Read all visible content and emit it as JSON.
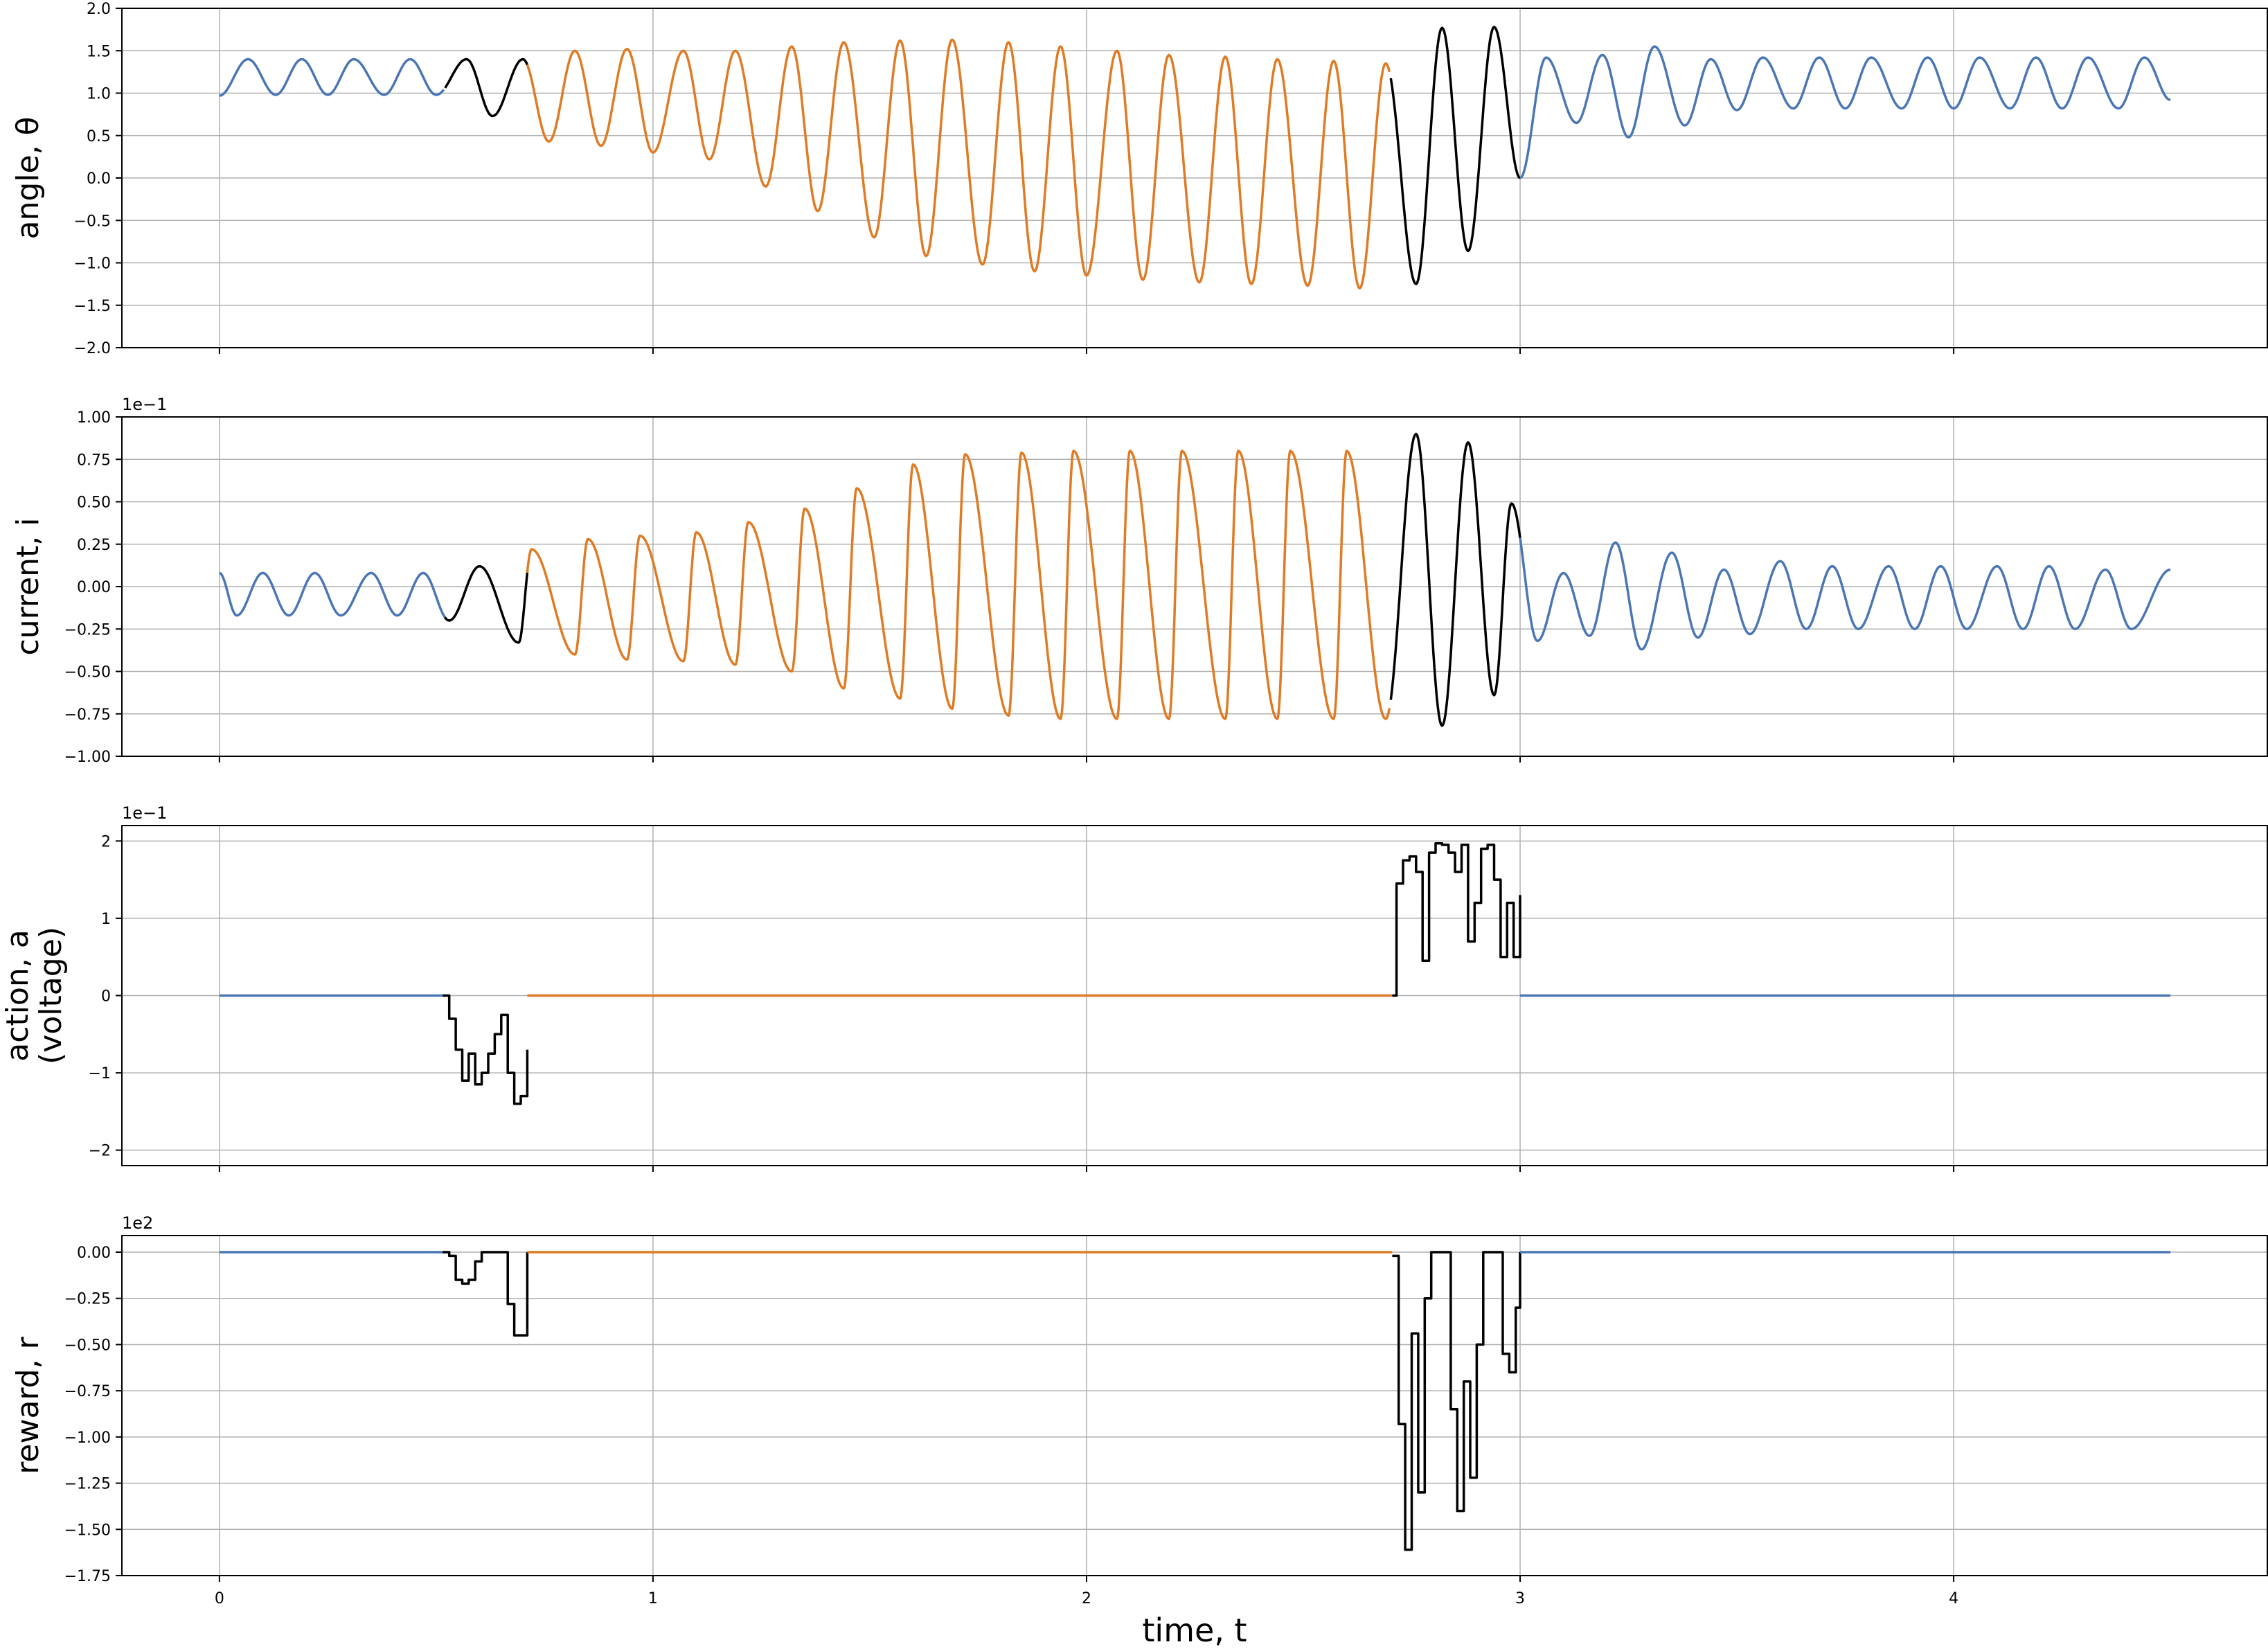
{
  "figure": {
    "xlabel": "time, t",
    "xlim": [
      -0.225,
      4.725
    ],
    "xticks": [
      0,
      1,
      2,
      3,
      4
    ],
    "xtick_labels": [
      "0",
      "1",
      "2",
      "3",
      "4"
    ],
    "grid": true,
    "colors": {
      "free": "#4a77b4",
      "controlled": "#000000",
      "coast": "#e07b24",
      "grid": "#b0b0b0"
    }
  },
  "chart_data": [
    {
      "id": "angle",
      "type": "line",
      "ylabel": "angle, θ",
      "ylim": [
        -2.0,
        2.0
      ],
      "yticks": [
        -2.0,
        -1.5,
        -1.0,
        -0.5,
        0.0,
        0.5,
        1.0,
        1.5,
        2.0
      ],
      "ytick_labels": [
        "−2.0",
        "−1.5",
        "−1.0",
        "−0.5",
        "0.0",
        "0.5",
        "1.0",
        "1.5",
        "2.0"
      ],
      "multiplier": "",
      "model": {
        "segments": [
          {
            "name": "free-1",
            "t": [
              0.0,
              0.52
            ],
            "color": "#4a77b4"
          },
          {
            "name": "control-1",
            "t": [
              0.52,
              0.71
            ],
            "color": "#000000"
          },
          {
            "name": "coast",
            "t": [
              0.71,
              2.7
            ],
            "color": "#e07b24"
          },
          {
            "name": "control-2",
            "t": [
              2.7,
              3.0
            ],
            "color": "#000000"
          },
          {
            "name": "free-2",
            "t": [
              3.0,
              4.5
            ],
            "color": "#4a77b4"
          }
        ],
        "peaks_t": [
          0.066,
          0.19,
          0.31,
          0.44,
          0.57,
          0.7,
          0.82,
          0.94,
          1.07,
          1.19,
          1.32,
          1.44,
          1.57,
          1.69,
          1.82,
          1.94,
          2.07,
          2.19,
          2.32,
          2.44,
          2.57,
          2.69,
          2.82,
          2.94,
          3.06,
          3.19,
          3.31,
          3.44,
          3.56,
          3.69,
          3.81,
          3.94,
          4.06,
          4.19,
          4.31,
          4.44
        ],
        "peaks_v": [
          1.4,
          1.4,
          1.4,
          1.4,
          1.4,
          1.4,
          1.5,
          1.52,
          1.5,
          1.5,
          1.55,
          1.6,
          1.62,
          1.63,
          1.6,
          1.55,
          1.5,
          1.45,
          1.43,
          1.4,
          1.38,
          1.35,
          1.77,
          1.78,
          1.42,
          1.45,
          1.55,
          1.4,
          1.42,
          1.42,
          1.42,
          1.42,
          1.42,
          1.42,
          1.42,
          1.42
        ],
        "troughs_t": [
          0.0,
          0.13,
          0.25,
          0.38,
          0.5,
          0.63,
          0.76,
          0.88,
          1.0,
          1.13,
          1.26,
          1.38,
          1.51,
          1.63,
          1.76,
          1.88,
          2.0,
          2.13,
          2.26,
          2.38,
          2.51,
          2.63,
          2.76,
          2.88,
          3.0,
          3.13,
          3.25,
          3.38,
          3.5,
          3.63,
          3.75,
          3.88,
          4.0,
          4.13,
          4.25,
          4.38,
          4.5
        ],
        "troughs_v": [
          0.97,
          0.98,
          0.98,
          0.98,
          0.98,
          0.73,
          0.43,
          0.38,
          0.3,
          0.22,
          -0.1,
          -0.39,
          -0.7,
          -0.92,
          -1.02,
          -1.1,
          -1.15,
          -1.2,
          -1.23,
          -1.25,
          -1.27,
          -1.3,
          -1.25,
          -0.86,
          0.0,
          0.65,
          0.48,
          0.62,
          0.8,
          0.82,
          0.82,
          0.82,
          0.82,
          0.82,
          0.82,
          0.82,
          0.92
        ]
      }
    },
    {
      "id": "current",
      "type": "line",
      "ylabel": "current, i",
      "ylim": [
        -1.0,
        1.0
      ],
      "yticks": [
        -1.0,
        -0.75,
        -0.5,
        -0.25,
        0.0,
        0.25,
        0.5,
        0.75,
        1.0
      ],
      "ytick_labels": [
        "−1.00",
        "−0.75",
        "−0.50",
        "−0.25",
        "0.00",
        "0.25",
        "0.50",
        "0.75",
        "1.00"
      ],
      "multiplier": "1e−1",
      "model": {
        "segments": [
          {
            "name": "free-1",
            "t": [
              0.0,
              0.52
            ],
            "color": "#4a77b4"
          },
          {
            "name": "control-1",
            "t": [
              0.52,
              0.71
            ],
            "color": "#000000"
          },
          {
            "name": "coast",
            "t": [
              0.71,
              2.7
            ],
            "color": "#e07b24"
          },
          {
            "name": "control-2",
            "t": [
              2.7,
              3.0
            ],
            "color": "#000000"
          },
          {
            "name": "free-2",
            "t": [
              3.0,
              4.5
            ],
            "color": "#4a77b4"
          }
        ],
        "peaks_t": [
          0.0,
          0.1,
          0.22,
          0.35,
          0.47,
          0.6,
          0.72,
          0.85,
          0.97,
          1.1,
          1.22,
          1.35,
          1.47,
          1.6,
          1.72,
          1.85,
          1.97,
          2.1,
          2.22,
          2.35,
          2.47,
          2.6,
          2.76,
          2.88,
          2.98,
          3.1,
          3.22,
          3.35,
          3.47,
          3.6,
          3.72,
          3.85,
          3.97,
          4.1,
          4.22,
          4.35,
          4.5
        ],
        "peaks_v": [
          0.08,
          0.08,
          0.08,
          0.08,
          0.08,
          0.12,
          0.22,
          0.28,
          0.3,
          0.32,
          0.38,
          0.46,
          0.58,
          0.72,
          0.78,
          0.79,
          0.8,
          0.8,
          0.8,
          0.8,
          0.8,
          0.8,
          0.9,
          0.85,
          0.49,
          0.08,
          0.26,
          0.2,
          0.1,
          0.15,
          0.12,
          0.12,
          0.12,
          0.12,
          0.12,
          0.1,
          0.1
        ],
        "troughs_t": [
          0.04,
          0.16,
          0.28,
          0.41,
          0.53,
          0.69,
          0.82,
          0.94,
          1.07,
          1.19,
          1.32,
          1.44,
          1.57,
          1.69,
          1.82,
          1.94,
          2.07,
          2.19,
          2.32,
          2.44,
          2.57,
          2.69,
          2.82,
          2.94,
          3.04,
          3.16,
          3.28,
          3.41,
          3.53,
          3.66,
          3.78,
          3.91,
          4.03,
          4.16,
          4.28,
          4.41
        ],
        "troughs_v": [
          -0.17,
          -0.17,
          -0.17,
          -0.17,
          -0.2,
          -0.33,
          -0.4,
          -0.43,
          -0.44,
          -0.46,
          -0.5,
          -0.6,
          -0.66,
          -0.72,
          -0.76,
          -0.78,
          -0.78,
          -0.78,
          -0.78,
          -0.78,
          -0.78,
          -0.78,
          -0.82,
          -0.64,
          -0.32,
          -0.29,
          -0.37,
          -0.3,
          -0.28,
          -0.25,
          -0.25,
          -0.25,
          -0.25,
          -0.25,
          -0.25,
          -0.25
        ]
      }
    },
    {
      "id": "action",
      "type": "step",
      "ylabel": "action, a",
      "ylabel2": "(voltage)",
      "ylim": [
        -2.2,
        2.2
      ],
      "yticks": [
        -2,
        -1,
        0,
        1,
        2
      ],
      "ytick_labels": [
        "−2",
        "−1",
        "0",
        "1",
        "2"
      ],
      "multiplier": "1e−1",
      "segments": [
        {
          "name": "free-1",
          "color": "#4a77b4",
          "t": [
            0.0,
            0.52
          ],
          "v": [
            0.0,
            0.0
          ]
        },
        {
          "name": "control-1",
          "color": "#000000",
          "t": [
            0.515,
            0.53,
            0.545,
            0.56,
            0.575,
            0.59,
            0.605,
            0.62,
            0.635,
            0.65,
            0.665,
            0.68,
            0.695,
            0.71
          ],
          "v": [
            0.0,
            -0.3,
            -0.7,
            -1.1,
            -0.75,
            -1.15,
            -1.0,
            -0.75,
            -0.5,
            -0.25,
            -1.0,
            -1.4,
            -1.3,
            -0.7
          ]
        },
        {
          "name": "coast",
          "color": "#e07b24",
          "t": [
            0.71,
            2.705
          ],
          "v": [
            0.0,
            0.0
          ]
        },
        {
          "name": "control-2",
          "color": "#000000",
          "t": [
            2.705,
            2.715,
            2.73,
            2.745,
            2.76,
            2.775,
            2.79,
            2.805,
            2.82,
            2.835,
            2.85,
            2.865,
            2.88,
            2.895,
            2.91,
            2.925,
            2.94,
            2.955,
            2.97,
            2.985,
            3.0
          ],
          "v": [
            0.0,
            1.45,
            1.75,
            1.8,
            1.6,
            0.45,
            1.85,
            1.97,
            1.95,
            1.85,
            1.6,
            1.95,
            0.7,
            1.2,
            1.9,
            1.95,
            1.5,
            0.5,
            1.2,
            0.5,
            1.3
          ]
        },
        {
          "name": "free-2",
          "color": "#4a77b4",
          "t": [
            3.0,
            4.5
          ],
          "v": [
            0.0,
            0.0
          ]
        }
      ]
    },
    {
      "id": "reward",
      "type": "step",
      "ylabel": "reward, r",
      "ylim": [
        -1.75,
        0.09
      ],
      "yticks": [
        -1.75,
        -1.5,
        -1.25,
        -1.0,
        -0.75,
        -0.5,
        -0.25,
        0.0
      ],
      "ytick_labels": [
        "−1.75",
        "−1.50",
        "−1.25",
        "−1.00",
        "−0.75",
        "−0.50",
        "−0.25",
        "0.00"
      ],
      "multiplier": "1e2",
      "segments": [
        {
          "name": "free-1",
          "color": "#4a77b4",
          "t": [
            0.0,
            0.52
          ],
          "v": [
            0.0,
            0.0
          ]
        },
        {
          "name": "control-1",
          "color": "#000000",
          "t": [
            0.515,
            0.53,
            0.545,
            0.56,
            0.575,
            0.59,
            0.605,
            0.62,
            0.635,
            0.65,
            0.665,
            0.68,
            0.695,
            0.71
          ],
          "v": [
            0.0,
            -0.02,
            -0.15,
            -0.17,
            -0.15,
            -0.05,
            0.0,
            0.0,
            0.0,
            0.0,
            -0.28,
            -0.45,
            -0.45,
            0.0
          ]
        },
        {
          "name": "coast",
          "color": "#e07b24",
          "t": [
            0.71,
            2.705
          ],
          "v": [
            0.0,
            0.0
          ]
        },
        {
          "name": "control-2",
          "color": "#000000",
          "t": [
            2.705,
            2.72,
            2.735,
            2.75,
            2.765,
            2.78,
            2.795,
            2.81,
            2.825,
            2.84,
            2.855,
            2.87,
            2.885,
            2.9,
            2.915,
            2.93,
            2.945,
            2.96,
            2.975,
            2.99,
            3.0
          ],
          "v": [
            -0.02,
            -0.93,
            -1.61,
            -0.44,
            -1.3,
            -0.25,
            0.0,
            0.0,
            0.0,
            -0.85,
            -1.4,
            -0.7,
            -1.22,
            -0.5,
            0.0,
            0.0,
            0.0,
            -0.55,
            -0.65,
            -0.3,
            0.0
          ]
        },
        {
          "name": "free-2",
          "color": "#4a77b4",
          "t": [
            3.0,
            4.5
          ],
          "v": [
            0.0,
            0.0
          ]
        }
      ]
    }
  ]
}
